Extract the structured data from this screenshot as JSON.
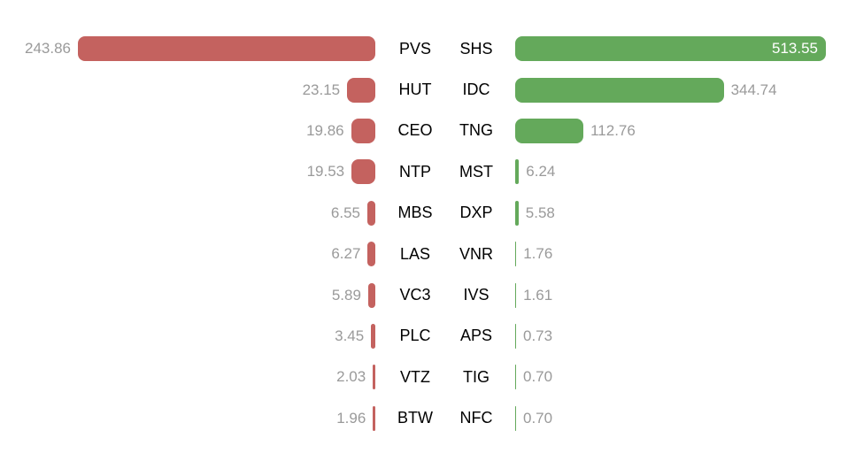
{
  "chart_data": {
    "type": "bar",
    "variant": "diverging-tornado",
    "title": "",
    "background": "#ffffff",
    "grid": false,
    "legend": false,
    "value_text_color": "#9a9a9a",
    "ticker_text_color": "#000000",
    "left_series": {
      "name": "left-red-series",
      "color": "#c4625f",
      "axis_range": [
        0,
        243.86
      ],
      "items": [
        {
          "label": "PVS",
          "value": 243.86
        },
        {
          "label": "HUT",
          "value": 23.15
        },
        {
          "label": "CEO",
          "value": 19.86
        },
        {
          "label": "NTP",
          "value": 19.53
        },
        {
          "label": "MBS",
          "value": 6.55
        },
        {
          "label": "LAS",
          "value": 6.27
        },
        {
          "label": "VC3",
          "value": 5.89
        },
        {
          "label": "PLC",
          "value": 3.45
        },
        {
          "label": "VTZ",
          "value": 2.03
        },
        {
          "label": "BTW",
          "value": 1.96
        }
      ]
    },
    "right_series": {
      "name": "right-green-series",
      "color": "#64a95b",
      "inside_value_color": "#ffffff",
      "axis_range": [
        0,
        513.55
      ],
      "items": [
        {
          "label": "SHS",
          "value": 513.55
        },
        {
          "label": "IDC",
          "value": 344.74
        },
        {
          "label": "TNG",
          "value": 112.76
        },
        {
          "label": "MST",
          "value": 6.24
        },
        {
          "label": "DXP",
          "value": 5.58
        },
        {
          "label": "VNR",
          "value": 1.76
        },
        {
          "label": "IVS",
          "value": 1.61
        },
        {
          "label": "APS",
          "value": 0.73
        },
        {
          "label": "TIG",
          "value": 0.7
        },
        {
          "label": "NFC",
          "value": 0.7
        }
      ]
    }
  }
}
